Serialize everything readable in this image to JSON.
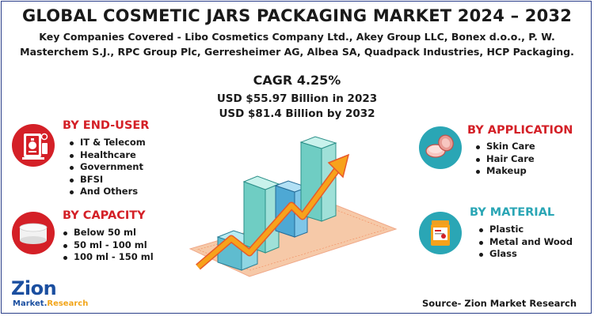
{
  "title": "GLOBAL COSMETIC JARS PACKAGING MARKET 2024 – 2032",
  "companies": {
    "line1": "Key Companies Covered - Libo Cosmetics Company Ltd., Akey Group LLC, Bonex d.o.o., P. W.",
    "line2": "Masterchem S.J., RPC Group Plc, Gerresheimer AG, Albea SA, Quadpack Industries, HCP Packaging."
  },
  "cagr": "CAGR 4.25%",
  "value_2023": "USD $55.97 Billion in 2023",
  "value_2032": "USD $81.4 Billion  by 2032",
  "end_user": {
    "title": "BY END-USER",
    "items": [
      "IT & Telecom",
      "Healthcare",
      "Government",
      "BFSI",
      "And Others"
    ]
  },
  "capacity": {
    "title": "BY CAPACITY",
    "items": [
      "Below 50 ml",
      "50 ml - 100 ml",
      "100 ml - 150 ml"
    ]
  },
  "application": {
    "title": "BY APPLICATION",
    "items": [
      "Skin Care",
      "Hair Care",
      "Makeup"
    ]
  },
  "material": {
    "title": "BY MATERIAL",
    "items": [
      "Plastic",
      "Metal and Wood",
      "Glass"
    ]
  },
  "source": "Source- Zion Market Research",
  "logo": {
    "main": "Zion",
    "sub_left": "Market.",
    "sub_right": "Research"
  },
  "colors": {
    "red": "#d42027",
    "teal": "#2aa6b5",
    "bar": "#7fd3cc",
    "arrow": "#f7a21b",
    "base": "#f6c9a8"
  },
  "icons": {
    "end_user": "server-rack-icon",
    "capacity": "jar-icon",
    "application": "cream-jar-icon",
    "material": "label-jar-icon",
    "illustration": "bar-chart-arrow-illustration"
  }
}
